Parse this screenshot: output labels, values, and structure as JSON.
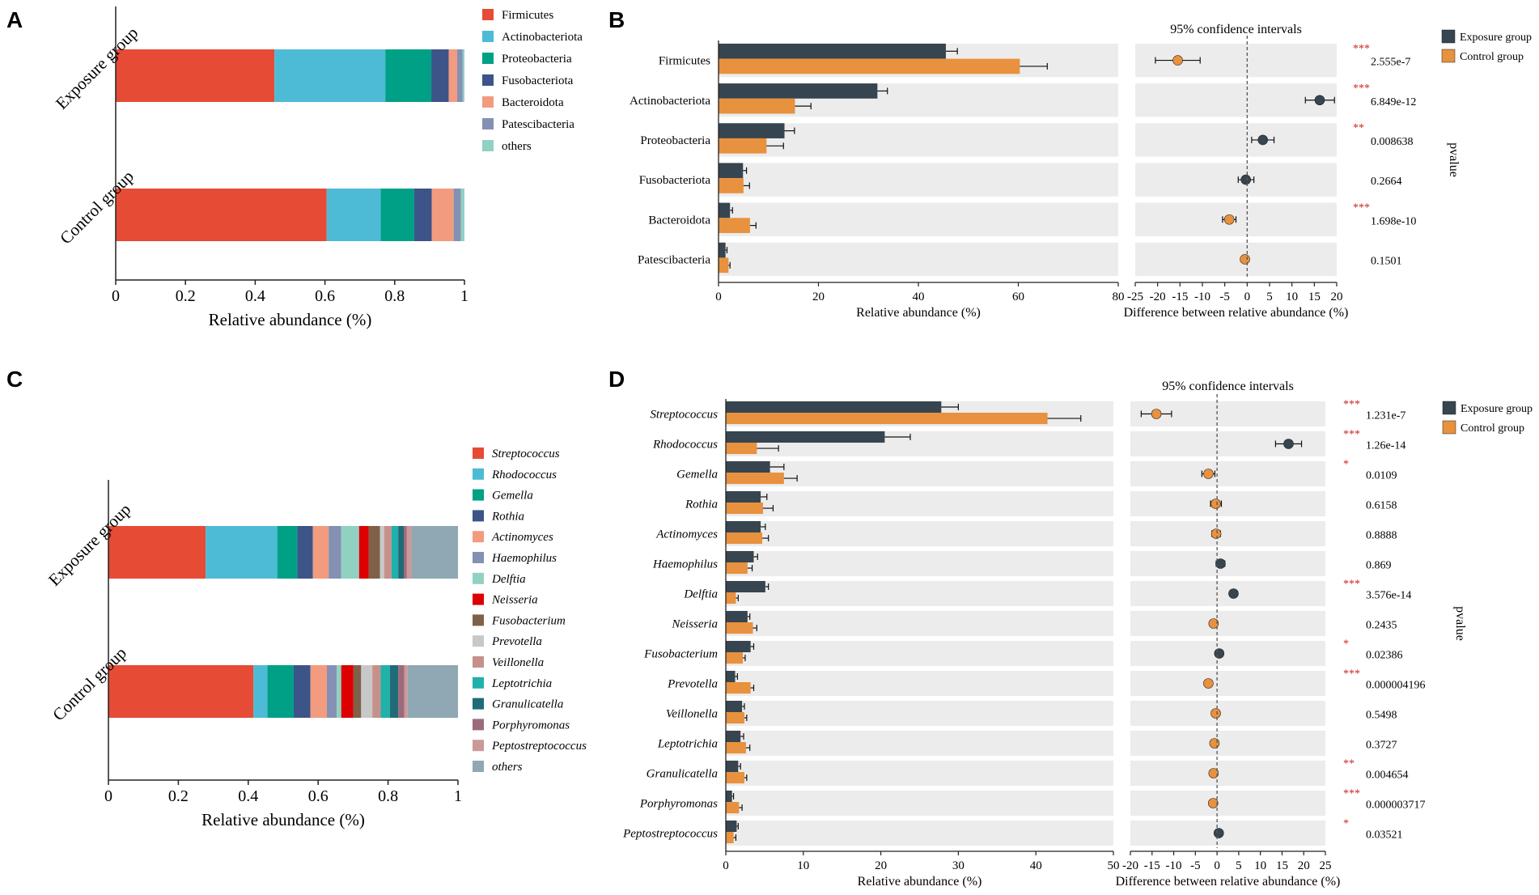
{
  "panels": {
    "A": "A",
    "B": "B",
    "C": "C",
    "D": "D"
  },
  "colors": {
    "exposure": "#36454f",
    "control": "#e8913e",
    "panel_bg": "#ececec",
    "sig": "#cc2222",
    "axis": "#222222"
  },
  "chart_data": [
    {
      "id": "A",
      "type": "bar",
      "stacked": true,
      "orientation": "horizontal",
      "categories": [
        "Exposure group",
        "Control group"
      ],
      "xlabel": "Relative abundance (%)",
      "xlim": [
        0,
        1
      ],
      "xticks": [
        "0",
        "0.2",
        "0.4",
        "0.6",
        "0.8",
        "1"
      ],
      "legend": "top-right",
      "series": [
        {
          "name": "Firmicutes",
          "color": "#e64b35",
          "values": [
            0.455,
            0.605
          ]
        },
        {
          "name": "Actinobacteriota",
          "color": "#4dbbd5",
          "values": [
            0.318,
            0.155
          ]
        },
        {
          "name": "Proteobacteria",
          "color": "#00a087",
          "values": [
            0.132,
            0.096
          ]
        },
        {
          "name": "Fusobacteriota",
          "color": "#3c5488",
          "values": [
            0.05,
            0.05
          ]
        },
        {
          "name": "Bacteroidota",
          "color": "#f39b7f",
          "values": [
            0.024,
            0.063
          ]
        },
        {
          "name": "Patescibacteria",
          "color": "#8491b4",
          "values": [
            0.016,
            0.021
          ]
        },
        {
          "name": "others",
          "color": "#91d1c2",
          "values": [
            0.005,
            0.01
          ]
        }
      ]
    },
    {
      "id": "B",
      "type": "bar",
      "orientation": "horizontal",
      "categories": [
        "Firmicutes",
        "Actinobacteriota",
        "Proteobacteria",
        "Fusobacteriota",
        "Bacteroidota",
        "Patescibacteria"
      ],
      "xlabel": "Relative abundance (%)",
      "xlim": [
        0,
        80
      ],
      "xticks": [
        "0",
        "20",
        "40",
        "60",
        "80"
      ],
      "series": [
        {
          "name": "Exposure group",
          "values": [
            45.5,
            31.8,
            13.2,
            4.9,
            2.3,
            1.4
          ],
          "errors": [
            2.3,
            2.0,
            2.0,
            0.7,
            0.5,
            0.3
          ]
        },
        {
          "name": "Control group",
          "values": [
            60.3,
            15.3,
            9.6,
            5.0,
            6.3,
            2.0
          ],
          "errors": [
            5.5,
            3.2,
            3.4,
            1.2,
            1.2,
            0.3
          ]
        }
      ],
      "ci": {
        "title": "95% confidence intervals",
        "xlabel": "Difference between relative abundance (%)",
        "xlim": [
          -25,
          20
        ],
        "xticks": [
          "-25",
          "-20",
          "-15",
          "-10",
          "-5",
          "0",
          "5",
          "10",
          "15",
          "20"
        ],
        "points": [
          {
            "est": -15.5,
            "lo": -20.5,
            "hi": -10.5,
            "group": "control"
          },
          {
            "est": 16.2,
            "lo": 13.0,
            "hi": 19.5,
            "group": "exposure"
          },
          {
            "est": 3.5,
            "lo": 1.0,
            "hi": 6.0,
            "group": "exposure"
          },
          {
            "est": -0.3,
            "lo": -2.0,
            "hi": 1.5,
            "group": "exposure"
          },
          {
            "est": -4.0,
            "lo": -5.5,
            "hi": -2.5,
            "group": "control"
          },
          {
            "est": -0.5,
            "lo": -1.0,
            "hi": 0.0,
            "group": "control"
          }
        ]
      },
      "pvalues": [
        "2.555e-7",
        "6.849e-12",
        "0.008638",
        "0.2664",
        "1.698e-10",
        "0.1501"
      ],
      "stars": [
        "***",
        "***",
        "**",
        "",
        "***",
        ""
      ],
      "pvalue_label": "pvalue",
      "legend": [
        "Exposure group",
        "Control group"
      ]
    },
    {
      "id": "C",
      "type": "bar",
      "stacked": true,
      "orientation": "horizontal",
      "categories": [
        "Exposure group",
        "Control group"
      ],
      "xlabel": "Relative abundance (%)",
      "xlim": [
        0,
        1
      ],
      "xticks": [
        "0",
        "0.2",
        "0.4",
        "0.6",
        "0.8",
        "1"
      ],
      "legend": "right",
      "series": [
        {
          "name": "Streptococcus",
          "color": "#e64b35",
          "values": [
            0.278,
            0.415
          ]
        },
        {
          "name": "Rhodococcus",
          "color": "#4dbbd5",
          "values": [
            0.205,
            0.04
          ]
        },
        {
          "name": "Gemella",
          "color": "#00a087",
          "values": [
            0.057,
            0.075
          ]
        },
        {
          "name": "Rothia",
          "color": "#3c5488",
          "values": [
            0.045,
            0.048
          ]
        },
        {
          "name": "Actinomyces",
          "color": "#f39b7f",
          "values": [
            0.045,
            0.047
          ]
        },
        {
          "name": "Haemophilus",
          "color": "#8491b4",
          "values": [
            0.036,
            0.028
          ]
        },
        {
          "name": "Delftia",
          "color": "#91d1c2",
          "values": [
            0.051,
            0.013
          ]
        },
        {
          "name": "Neisseria",
          "color": "#dc0000",
          "values": [
            0.028,
            0.035
          ]
        },
        {
          "name": "Fusobacterium",
          "color": "#7e6148",
          "values": [
            0.032,
            0.022
          ]
        },
        {
          "name": "Prevotella",
          "color": "#c8c8c8",
          "values": [
            0.012,
            0.032
          ]
        },
        {
          "name": "Veillonella",
          "color": "#c6918b",
          "values": [
            0.021,
            0.024
          ]
        },
        {
          "name": "Leptotrichia",
          "color": "#20b2aa",
          "values": [
            0.019,
            0.026
          ]
        },
        {
          "name": "Granulicatella",
          "color": "#1f6b78",
          "values": [
            0.016,
            0.024
          ]
        },
        {
          "name": "Porphyromonas",
          "color": "#9b6b7d",
          "values": [
            0.008,
            0.017
          ]
        },
        {
          "name": "Peptostreptococcus",
          "color": "#cc9999",
          "values": [
            0.014,
            0.01
          ]
        },
        {
          "name": "others",
          "color": "#8fa8b3",
          "values": [
            0.133,
            0.144
          ]
        }
      ]
    },
    {
      "id": "D",
      "type": "bar",
      "orientation": "horizontal",
      "categories": [
        "Streptococcus",
        "Rhodococcus",
        "Gemella",
        "Rothia",
        "Actinomyces",
        "Haemophilus",
        "Delftia",
        "Neisseria",
        "Fusobacterium",
        "Prevotella",
        "Veillonella",
        "Leptotrichia",
        "Granulicatella",
        "Porphyromonas",
        "Peptostreptococcus"
      ],
      "xlabel": "Relative abundance (%)",
      "xlim": [
        0,
        50
      ],
      "xticks": [
        "0",
        "10",
        "20",
        "30",
        "40",
        "50"
      ],
      "series": [
        {
          "name": "Exposure group",
          "values": [
            27.8,
            20.5,
            5.7,
            4.5,
            4.5,
            3.6,
            5.1,
            2.8,
            3.2,
            1.2,
            2.1,
            1.9,
            1.6,
            0.8,
            1.4
          ],
          "errors": [
            2.2,
            3.3,
            1.8,
            0.8,
            0.6,
            0.5,
            0.4,
            0.3,
            0.4,
            0.3,
            0.3,
            0.4,
            0.3,
            0.2,
            0.2
          ]
        },
        {
          "name": "Control group",
          "values": [
            41.5,
            4.0,
            7.5,
            4.8,
            4.7,
            2.8,
            1.3,
            3.5,
            2.2,
            3.2,
            2.4,
            2.6,
            2.4,
            1.7,
            1.0
          ],
          "errors": [
            4.3,
            2.8,
            1.7,
            1.3,
            0.8,
            0.6,
            0.3,
            0.5,
            0.3,
            0.4,
            0.3,
            0.5,
            0.3,
            0.4,
            0.3
          ]
        }
      ],
      "ci": {
        "title": "95% confidence intervals",
        "xlabel": "Difference between relative abundance (%)",
        "xlim": [
          -20,
          25
        ],
        "xticks": [
          "-20",
          "-15",
          "-10",
          "-5",
          "0",
          "5",
          "10",
          "15",
          "20",
          "25"
        ],
        "points": [
          {
            "est": -14.0,
            "lo": -17.5,
            "hi": -10.5,
            "group": "control"
          },
          {
            "est": 16.5,
            "lo": 13.5,
            "hi": 19.5,
            "group": "exposure"
          },
          {
            "est": -2.0,
            "lo": -3.5,
            "hi": -0.5,
            "group": "control"
          },
          {
            "est": -0.3,
            "lo": -1.5,
            "hi": 1.0,
            "group": "control"
          },
          {
            "est": -0.2,
            "lo": -1.2,
            "hi": 0.8,
            "group": "control"
          },
          {
            "est": 0.8,
            "lo": -0.2,
            "hi": 1.8,
            "group": "exposure"
          },
          {
            "est": 3.8,
            "lo": 3.0,
            "hi": 4.6,
            "group": "exposure"
          },
          {
            "est": -0.8,
            "lo": -1.6,
            "hi": 0.0,
            "group": "control"
          },
          {
            "est": 0.5,
            "lo": 0.0,
            "hi": 1.0,
            "group": "exposure"
          },
          {
            "est": -2.0,
            "lo": -2.8,
            "hi": -1.2,
            "group": "control"
          },
          {
            "est": -0.3,
            "lo": -0.8,
            "hi": 0.2,
            "group": "control"
          },
          {
            "est": -0.6,
            "lo": -1.3,
            "hi": 0.1,
            "group": "control"
          },
          {
            "est": -0.8,
            "lo": -1.2,
            "hi": -0.4,
            "group": "control"
          },
          {
            "est": -0.9,
            "lo": -1.2,
            "hi": -0.6,
            "group": "control"
          },
          {
            "est": 0.4,
            "lo": 0.1,
            "hi": 0.7,
            "group": "exposure"
          }
        ]
      },
      "pvalues": [
        "1.231e-7",
        "1.26e-14",
        "0.0109",
        "0.6158",
        "0.8888",
        "0.869",
        "3.576e-14",
        "0.2435",
        "0.02386",
        "0.000004196",
        "0.5498",
        "0.3727",
        "0.004654",
        "0.000003717",
        "0.03521"
      ],
      "stars": [
        "***",
        "***",
        "*",
        "",
        "",
        "",
        "***",
        "",
        "*",
        "***",
        "",
        "",
        "**",
        "***",
        "*"
      ],
      "pvalue_label": "pvalue",
      "legend": [
        "Exposure group",
        "Control group"
      ],
      "italic_labels": true
    }
  ]
}
